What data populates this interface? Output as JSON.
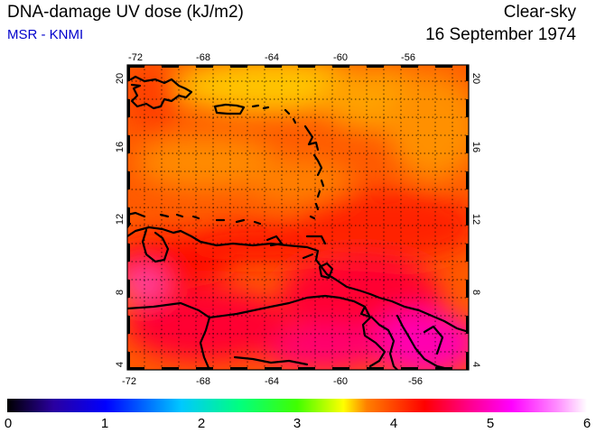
{
  "header": {
    "title": "DNA-damage UV dose (kJ/m2)",
    "subtitle": "MSR - KNMI",
    "mode": "Clear-sky",
    "date": "16 September 1974"
  },
  "map": {
    "region": "Caribbean",
    "lon_range": [
      -73,
      -53
    ],
    "lat_range": [
      3.5,
      20.5
    ],
    "lon_ticks": [
      "-72",
      "-68",
      "-64",
      "-60",
      "-56"
    ],
    "lat_ticks": [
      "4",
      "8",
      "12",
      "16",
      "20"
    ],
    "grid": "dotted",
    "coastline_color": "#000000"
  },
  "colorbar": {
    "ticks": [
      "0",
      "1",
      "2",
      "3",
      "4",
      "5",
      "6"
    ],
    "min": 0,
    "max": 6,
    "colors": [
      "#000000",
      "#2a00a0",
      "#0000ff",
      "#00c8ff",
      "#00ff80",
      "#40ff00",
      "#ffff00",
      "#ff8000",
      "#ff0000",
      "#ff0090",
      "#ff00ff",
      "#ff90ff",
      "#ffffff"
    ]
  }
}
